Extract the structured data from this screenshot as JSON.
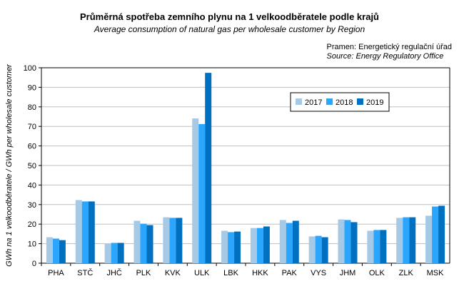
{
  "chart_data": {
    "type": "bar",
    "title": "Průměrná spotřeba zemního plynu na 1 velkoodběratele podle krajů",
    "subtitle": "Average consumption of natural gas per wholesale customer by Region",
    "source": "Pramen: Energetický regulační úřad",
    "source_en": "Source: Energy Regulatory Office",
    "ylabel": "GWh na 1 velkoodběratele / GWh per wholesale customer",
    "xlabel": "",
    "ylim": [
      0,
      100
    ],
    "yticks": [
      0,
      10,
      20,
      30,
      40,
      50,
      60,
      70,
      80,
      90,
      100
    ],
    "grid": true,
    "legend_position": "top-right",
    "categories": [
      "PHA",
      "STČ",
      "JHČ",
      "PLK",
      "KVK",
      "ULK",
      "LBK",
      "HKK",
      "PAK",
      "VYS",
      "JHM",
      "OLK",
      "ZLK",
      "MSK"
    ],
    "series": [
      {
        "name": "2017",
        "color": "#a6cae6",
        "values": [
          13.3,
          32.3,
          10.0,
          21.7,
          23.5,
          74.1,
          16.6,
          18.0,
          22.1,
          13.7,
          22.4,
          16.6,
          23.2,
          24.3
        ]
      },
      {
        "name": "2018",
        "color": "#2ba6ff",
        "values": [
          12.6,
          31.6,
          10.4,
          20.2,
          23.2,
          71.2,
          15.9,
          18.0,
          20.6,
          14.0,
          22.1,
          17.0,
          23.5,
          29.0
        ]
      },
      {
        "name": "2019",
        "color": "#0070c0",
        "values": [
          11.8,
          31.6,
          10.4,
          19.5,
          23.2,
          97.4,
          16.2,
          18.8,
          21.7,
          13.3,
          21.0,
          17.0,
          23.5,
          29.4
        ]
      }
    ]
  }
}
